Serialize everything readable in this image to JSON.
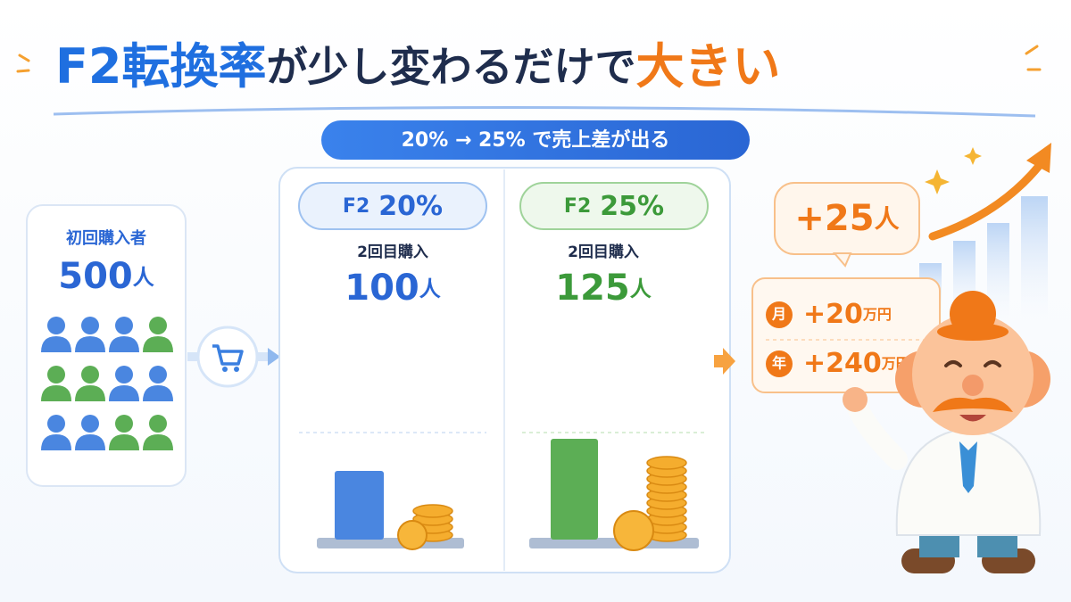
{
  "title": {
    "part1": "F2転換率",
    "part2": "が少し変わるだけで",
    "part3": "大きい"
  },
  "subtitle": "20% → 25% で売上差が出る",
  "first_buyers": {
    "label": "初回購入者",
    "count": "500",
    "unit": "人"
  },
  "panels": [
    {
      "prefix": "F2",
      "rate": "20%",
      "label": "2回目購入",
      "count": "100",
      "unit": "人"
    },
    {
      "prefix": "F2",
      "rate": "25%",
      "label": "2回目購入",
      "count": "125",
      "unit": "人"
    }
  ],
  "result": {
    "increase": "+25",
    "increase_unit": "人",
    "rows": [
      {
        "period": "月",
        "amount": "+20",
        "unit": "万円"
      },
      {
        "period": "年",
        "amount": "+240",
        "unit": "万円"
      }
    ]
  }
}
